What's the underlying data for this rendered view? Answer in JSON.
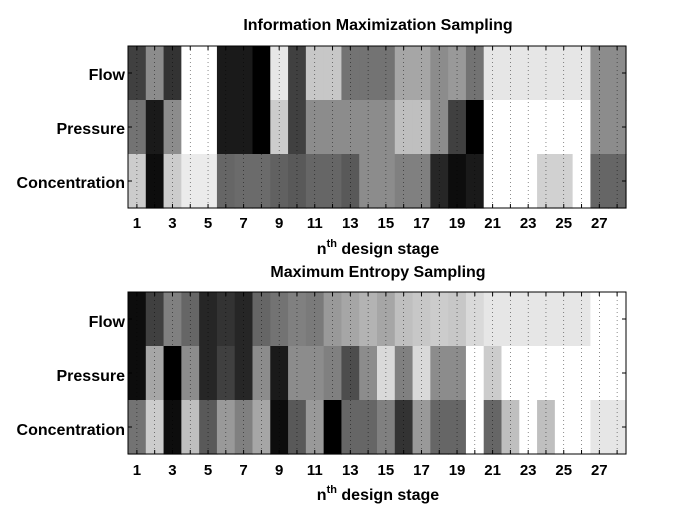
{
  "chart_data": [
    {
      "type": "heatmap",
      "title": "Information Maximization Sampling",
      "xlabel_base": "n",
      "xlabel_sup": "th",
      "xlabel_rest": " design stage",
      "row_labels": [
        "Flow",
        "Pressure",
        "Concentration"
      ],
      "x_range": [
        0.5,
        28.5
      ],
      "x_ticks": [
        "1",
        "3",
        "5",
        "7",
        "9",
        "11",
        "13",
        "15",
        "17",
        "19",
        "21",
        "23",
        "25",
        "27"
      ],
      "colormap": "gray (0 = black, 1 = white)",
      "values": [
        [
          0.25,
          0.55,
          0.2,
          1.0,
          1.0,
          0.1,
          0.1,
          0.0,
          0.9,
          0.25,
          0.78,
          0.78,
          0.45,
          0.45,
          0.45,
          0.65,
          0.65,
          0.55,
          0.6,
          0.45,
          0.9,
          0.9,
          0.9,
          0.9,
          0.9,
          0.9,
          0.55,
          0.55
        ],
        [
          0.45,
          0.1,
          0.55,
          1.0,
          1.0,
          0.1,
          0.1,
          0.0,
          0.8,
          0.25,
          0.55,
          0.55,
          0.55,
          0.55,
          0.55,
          0.75,
          0.75,
          0.55,
          0.25,
          0.0,
          1.0,
          1.0,
          1.0,
          1.0,
          1.0,
          1.0,
          0.55,
          0.55
        ],
        [
          0.8,
          0.05,
          0.8,
          0.92,
          0.92,
          0.4,
          0.42,
          0.42,
          0.38,
          0.35,
          0.4,
          0.4,
          0.35,
          0.55,
          0.55,
          0.5,
          0.5,
          0.15,
          0.05,
          0.1,
          1.0,
          1.0,
          1.0,
          0.82,
          0.82,
          1.0,
          0.4,
          0.4
        ]
      ]
    },
    {
      "type": "heatmap",
      "title": "Maximum Entropy Sampling",
      "xlabel_base": "n",
      "xlabel_sup": "th",
      "xlabel_rest": " design stage",
      "row_labels": [
        "Flow",
        "Pressure",
        "Concentration"
      ],
      "x_range": [
        0.5,
        28.5
      ],
      "x_ticks": [
        "1",
        "3",
        "5",
        "7",
        "9",
        "11",
        "13",
        "15",
        "17",
        "19",
        "21",
        "23",
        "25",
        "27"
      ],
      "colormap": "gray (0 = black, 1 = white)",
      "values": [
        [
          0.05,
          0.25,
          0.5,
          0.4,
          0.15,
          0.2,
          0.15,
          0.4,
          0.45,
          0.5,
          0.48,
          0.6,
          0.65,
          0.7,
          0.65,
          0.75,
          0.78,
          0.8,
          0.78,
          0.85,
          0.9,
          0.9,
          0.9,
          0.9,
          0.9,
          0.9,
          1.0,
          1.0
        ],
        [
          0.05,
          0.65,
          0.0,
          0.55,
          0.15,
          0.25,
          0.15,
          0.55,
          0.1,
          0.55,
          0.55,
          0.5,
          0.3,
          0.55,
          0.85,
          0.5,
          0.85,
          0.55,
          0.55,
          1.0,
          0.8,
          1.0,
          1.0,
          1.0,
          1.0,
          1.0,
          1.0,
          1.0
        ],
        [
          0.45,
          0.8,
          0.05,
          0.75,
          0.35,
          0.6,
          0.5,
          0.65,
          0.05,
          0.35,
          0.6,
          0.0,
          0.4,
          0.4,
          0.5,
          0.2,
          0.6,
          0.4,
          0.4,
          1.0,
          0.4,
          0.75,
          1.0,
          0.75,
          1.0,
          1.0,
          0.9,
          0.9
        ]
      ]
    }
  ]
}
